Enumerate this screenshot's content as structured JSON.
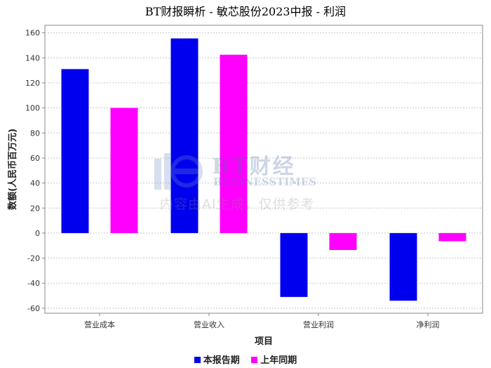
{
  "title": "BT财报瞬析 - 敏芯股份2023中报 - 利润",
  "chart_data": {
    "type": "bar",
    "categories": [
      "营业成本",
      "营业收入",
      "营业利润",
      "净利润"
    ],
    "series": [
      {
        "name": "本报告期",
        "color": "#0000ee",
        "values": [
          131,
          155.5,
          -51,
          -54
        ]
      },
      {
        "name": "上年同期",
        "color": "#ff00ff",
        "values": [
          100,
          142.5,
          -13.5,
          -6.5
        ]
      }
    ],
    "xlabel": "项目",
    "ylabel": "数额(人民币百万元)",
    "ylim": [
      -64,
      166
    ],
    "yticks": [
      -60,
      -40,
      -20,
      0,
      20,
      40,
      60,
      80,
      100,
      120,
      140,
      160
    ],
    "grid": true,
    "legend": "bottom"
  },
  "watermark": {
    "brand": "BT财经",
    "brand_en": "BUSINESSTIMES",
    "note": "内容由AI生成，仅供参考"
  }
}
